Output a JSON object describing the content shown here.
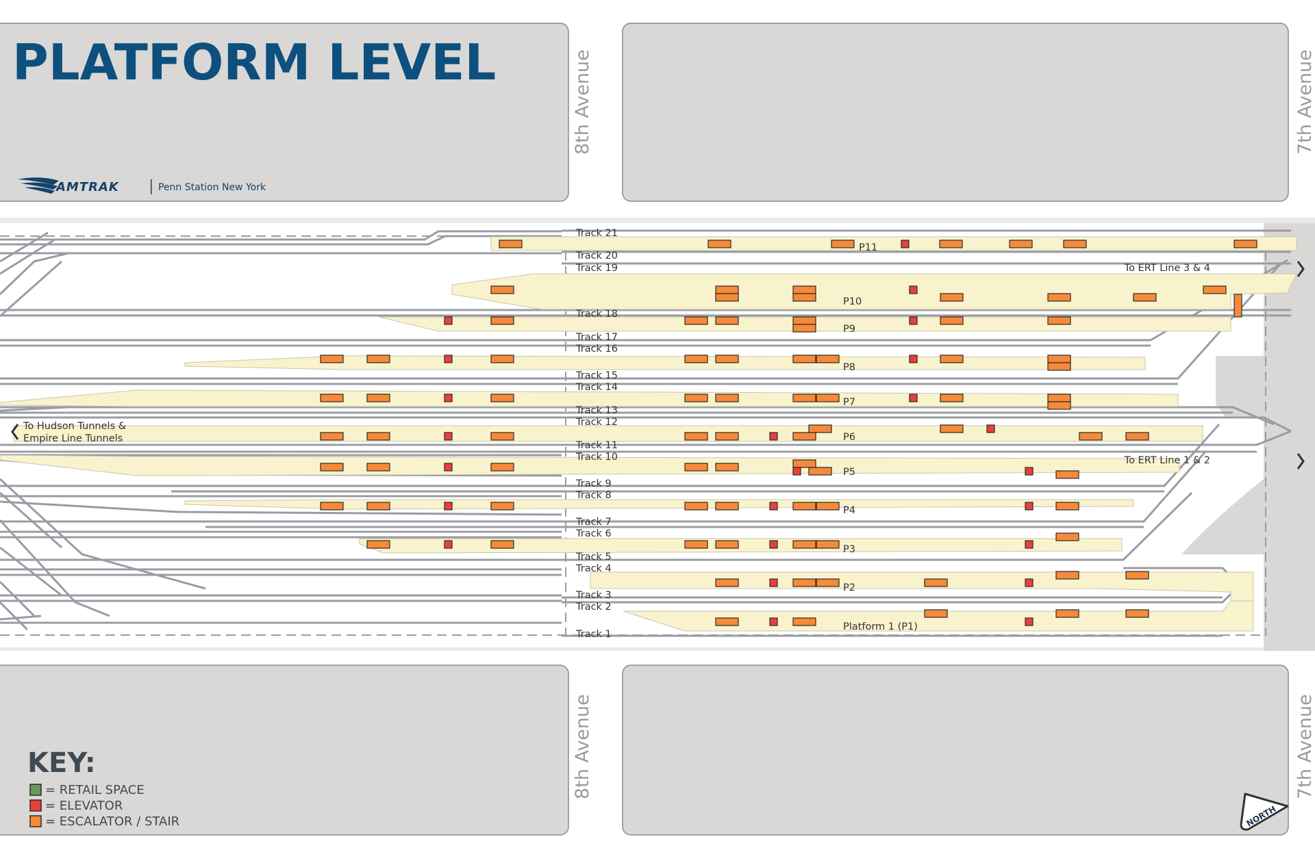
{
  "title": "PLATFORM LEVEL",
  "brand": {
    "name": "AMTRAK",
    "subtitle": "Penn Station New York"
  },
  "streets": {
    "left": "8th Avenue",
    "right": "7th Avenue"
  },
  "tracks": [
    "Track 21",
    "Track 20",
    "Track 19",
    "Track 18",
    "Track 17",
    "Track 16",
    "Track 15",
    "Track 14",
    "Track 13",
    "Track 12",
    "Track 11",
    "Track 10",
    "Track 9",
    "Track 8",
    "Track 7",
    "Track 6",
    "Track 5",
    "Track 4",
    "Track 3",
    "Track 2",
    "Track 1"
  ],
  "platforms": [
    "P11",
    "P10",
    "P9",
    "P8",
    "P7",
    "P6",
    "P5",
    "P4",
    "P3",
    "P2",
    "Platform 1 (P1)"
  ],
  "directions": {
    "west": [
      "To Hudson Tunnels &",
      "Empire Line Tunnels"
    ],
    "east_north": "To ERT Line 3 & 4",
    "east_south": "To ERT Line 1 & 2"
  },
  "key": {
    "title": "KEY:",
    "items": [
      {
        "label": "= RETAIL SPACE",
        "color": "#6a9a5a"
      },
      {
        "label": "= ELEVATOR",
        "color": "#e8413a"
      },
      {
        "label": "= ESCALATOR / STAIR",
        "color": "#f58a3a"
      }
    ]
  },
  "compass": "NORTH",
  "colors": {
    "block": "#d9d8d6",
    "platform": "#f8f3cc",
    "track": "#9a9ca3",
    "escalator": "#f58a3a",
    "elevator": "#e8413a",
    "title": "#0d4f7d"
  }
}
